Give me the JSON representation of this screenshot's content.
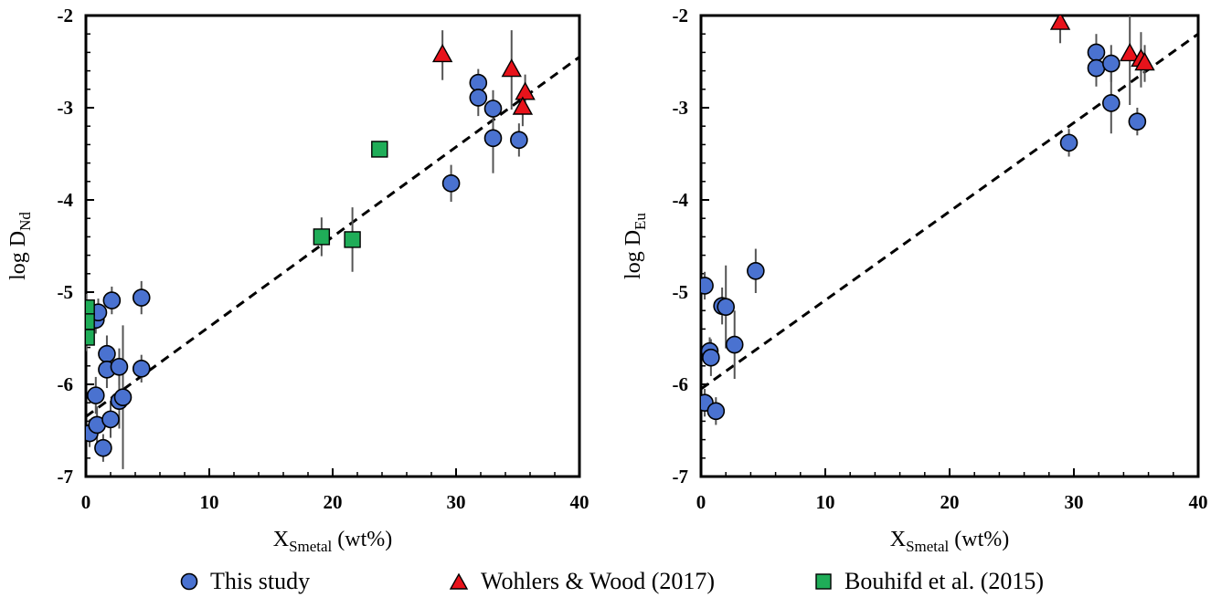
{
  "legend": {
    "this_study": "This study",
    "wohlers": "Wohlers & Wood (2017)",
    "bouhifd": "Bouhifd et al. (2015)"
  },
  "colors": {
    "this_study": "#4a72d0",
    "wohlers": "#e8131b",
    "bouhifd": "#1fad58",
    "frame": "#000000",
    "errorbar": "#555555"
  },
  "chart_data": [
    {
      "type": "scatter",
      "panel": "left",
      "xlabel": {
        "main": "X",
        "sub": "Smetal",
        "tail": " (wt%)"
      },
      "ylabel": {
        "main": "log D",
        "sub": "Nd"
      },
      "xlim": [
        0,
        40
      ],
      "ylim": [
        -7,
        -2
      ],
      "xticks": [
        0,
        10,
        20,
        30,
        40
      ],
      "yticks": [
        -7,
        -6,
        -5,
        -4,
        -3,
        -2
      ],
      "grid": false,
      "fit_line": {
        "style": "dashed",
        "x": [
          0,
          40
        ],
        "y": [
          -6.35,
          -2.45
        ]
      },
      "series": [
        {
          "name": "This study",
          "marker": "circle",
          "points": [
            {
              "x": 0.3,
              "y": -6.53,
              "err": 0.15
            },
            {
              "x": 0.5,
              "y": -5.28,
              "err": 0.2
            },
            {
              "x": 0.8,
              "y": -5.3,
              "err": 0.15
            },
            {
              "x": 1.0,
              "y": -5.22,
              "err": 0.15
            },
            {
              "x": 0.8,
              "y": -6.12,
              "err": 0.2
            },
            {
              "x": 0.9,
              "y": -6.44,
              "err": 0.2
            },
            {
              "x": 1.4,
              "y": -6.69,
              "err": 0.15
            },
            {
              "x": 1.7,
              "y": -5.67,
              "err": 0.2
            },
            {
              "x": 1.7,
              "y": -5.84,
              "err": 0.2
            },
            {
              "x": 2.0,
              "y": -6.38,
              "err": 0.2
            },
            {
              "x": 2.1,
              "y": -5.09,
              "err": 0.15
            },
            {
              "x": 2.7,
              "y": -5.81,
              "err": 0.2
            },
            {
              "x": 2.7,
              "y": -6.18,
              "err": 0.3
            },
            {
              "x": 3.0,
              "y": -6.14,
              "err": 0.78
            },
            {
              "x": 4.5,
              "y": -5.06,
              "err": 0.18
            },
            {
              "x": 4.5,
              "y": -5.83,
              "err": 0.15
            },
            {
              "x": 29.6,
              "y": -3.82,
              "err": 0.2
            },
            {
              "x": 31.8,
              "y": -2.73,
              "err": 0.15
            },
            {
              "x": 31.8,
              "y": -2.89,
              "err": 0.2
            },
            {
              "x": 33.0,
              "y": -3.01,
              "err": 0.2
            },
            {
              "x": 33.0,
              "y": -3.33,
              "err": 0.38
            },
            {
              "x": 35.1,
              "y": -3.35,
              "err": 0.18
            }
          ]
        },
        {
          "name": "Wohlers & Wood (2017)",
          "marker": "triangle",
          "points": [
            {
              "x": 28.9,
              "y": -2.43,
              "err": 0.27
            },
            {
              "x": 34.5,
              "y": -2.59,
              "err": 0.43
            },
            {
              "x": 35.6,
              "y": -2.84,
              "err": 0.2
            },
            {
              "x": 35.4,
              "y": -3.0,
              "err": 0.2
            }
          ]
        },
        {
          "name": "Bouhifd et al. (2015)",
          "marker": "square",
          "points": [
            {
              "x": 0.05,
              "y": -5.17,
              "err": 0.15
            },
            {
              "x": 0.05,
              "y": -5.32,
              "err": 0.15
            },
            {
              "x": 0.05,
              "y": -5.49,
              "err": 0.15
            },
            {
              "x": 19.1,
              "y": -4.4,
              "err": 0.21
            },
            {
              "x": 21.6,
              "y": -4.43,
              "err": 0.35
            },
            {
              "x": 23.8,
              "y": -3.45,
              "err": 0.0
            }
          ]
        }
      ]
    },
    {
      "type": "scatter",
      "panel": "right",
      "xlabel": {
        "main": "X",
        "sub": "Smetal",
        "tail": " (wt%)"
      },
      "ylabel": {
        "main": "log D",
        "sub": "Eu"
      },
      "xlim": [
        0,
        40
      ],
      "ylim": [
        -7,
        -2
      ],
      "xticks": [
        0,
        10,
        20,
        30,
        40
      ],
      "yticks": [
        -7,
        -6,
        -5,
        -4,
        -3,
        -2
      ],
      "grid": false,
      "fit_line": {
        "style": "dashed",
        "x": [
          0,
          40
        ],
        "y": [
          -6.05,
          -2.2
        ]
      },
      "series": [
        {
          "name": "This study",
          "marker": "circle",
          "points": [
            {
              "x": 0.3,
              "y": -4.93,
              "err": 0.15
            },
            {
              "x": 0.3,
              "y": -6.2,
              "err": 0.15
            },
            {
              "x": 0.7,
              "y": -5.64,
              "err": 0.15
            },
            {
              "x": 0.8,
              "y": -5.71,
              "err": 0.2
            },
            {
              "x": 1.2,
              "y": -6.29,
              "err": 0.15
            },
            {
              "x": 1.7,
              "y": -5.15,
              "err": 0.2
            },
            {
              "x": 2.0,
              "y": -5.16,
              "err": 0.45
            },
            {
              "x": 2.7,
              "y": -5.57,
              "err": 0.37
            },
            {
              "x": 4.4,
              "y": -4.77,
              "err": 0.24
            },
            {
              "x": 29.6,
              "y": -3.38,
              "err": 0.15
            },
            {
              "x": 31.8,
              "y": -2.4,
              "err": 0.2
            },
            {
              "x": 31.8,
              "y": -2.57,
              "err": 0.2
            },
            {
              "x": 33.0,
              "y": -2.52,
              "err": 0.2
            },
            {
              "x": 33.0,
              "y": -2.95,
              "err": 0.33
            },
            {
              "x": 35.1,
              "y": -3.15,
              "err": 0.15
            }
          ]
        },
        {
          "name": "Wohlers & Wood (2017)",
          "marker": "triangle",
          "points": [
            {
              "x": 28.9,
              "y": -2.08,
              "err": 0.22
            },
            {
              "x": 34.5,
              "y": -2.42,
              "err": 0.55
            },
            {
              "x": 35.4,
              "y": -2.48,
              "err": 0.3
            },
            {
              "x": 35.7,
              "y": -2.52,
              "err": 0.2
            }
          ]
        }
      ]
    }
  ]
}
